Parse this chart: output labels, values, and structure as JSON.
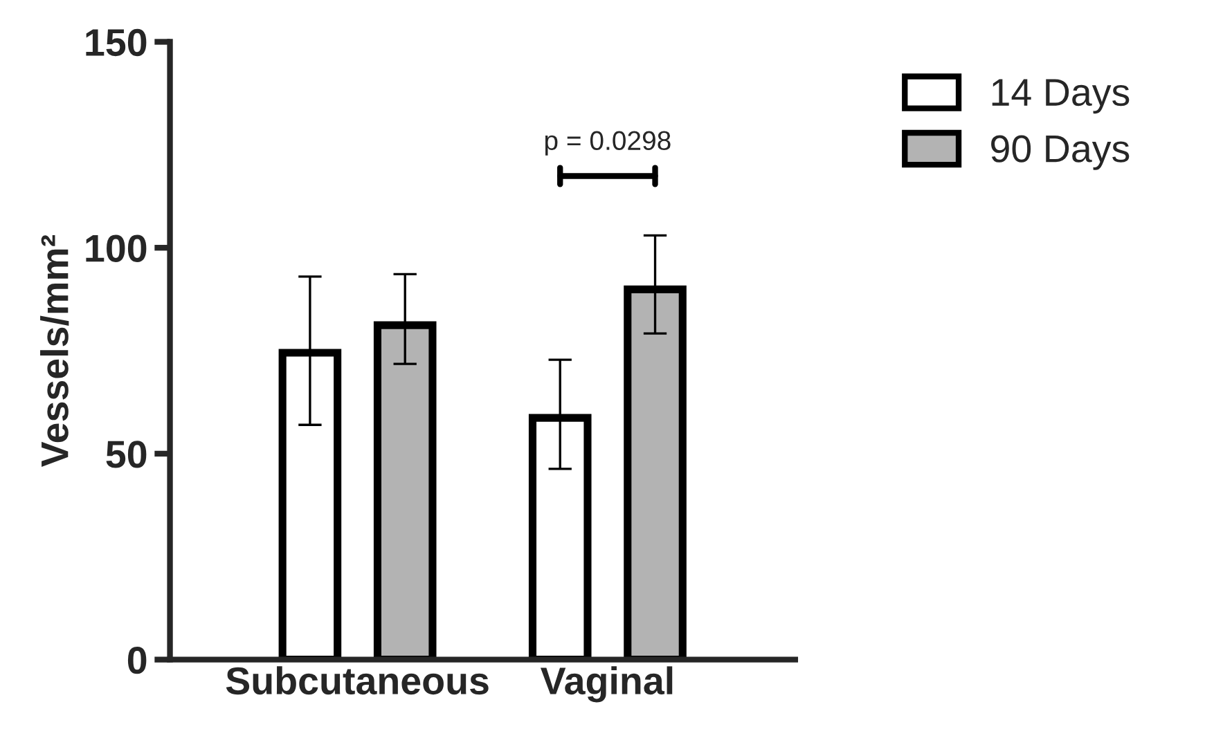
{
  "chart_data": {
    "type": "bar",
    "categories": [
      "Subcutaneous",
      "Vaginal"
    ],
    "ylabel": "Vessels/mm²",
    "ylim": [
      0,
      150
    ],
    "yticks": [
      0,
      50,
      100,
      150
    ],
    "grid": false,
    "legend": "top right",
    "series": [
      {
        "name": "14 Days",
        "color": "#ffffff",
        "values": [
          74.5,
          58.7
        ],
        "errors": [
          [
            57,
            93
          ],
          [
            46.3,
            72.8
          ]
        ]
      },
      {
        "name": "90 Days",
        "color": "#b3b3b3",
        "values": [
          81.2,
          89.9
        ],
        "errors": [
          [
            71.8,
            93.6
          ],
          [
            79.2,
            103
          ]
        ]
      }
    ],
    "annotations": [
      "p = 0.0298"
    ]
  }
}
